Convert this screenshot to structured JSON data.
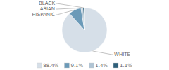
{
  "chart_data": {
    "type": "pie",
    "categories": [
      "WHITE",
      "HISPANIC",
      "ASIAN",
      "BLACK"
    ],
    "values": [
      88.4,
      9.1,
      1.4,
      1.1
    ],
    "value_labels": [
      "88.4%",
      "9.1%",
      "1.4%",
      "1.1%"
    ],
    "colors": [
      "#d6dfe8",
      "#6b9ab8",
      "#b0c4d4",
      "#2e5f7a"
    ],
    "legend": "bottom"
  }
}
